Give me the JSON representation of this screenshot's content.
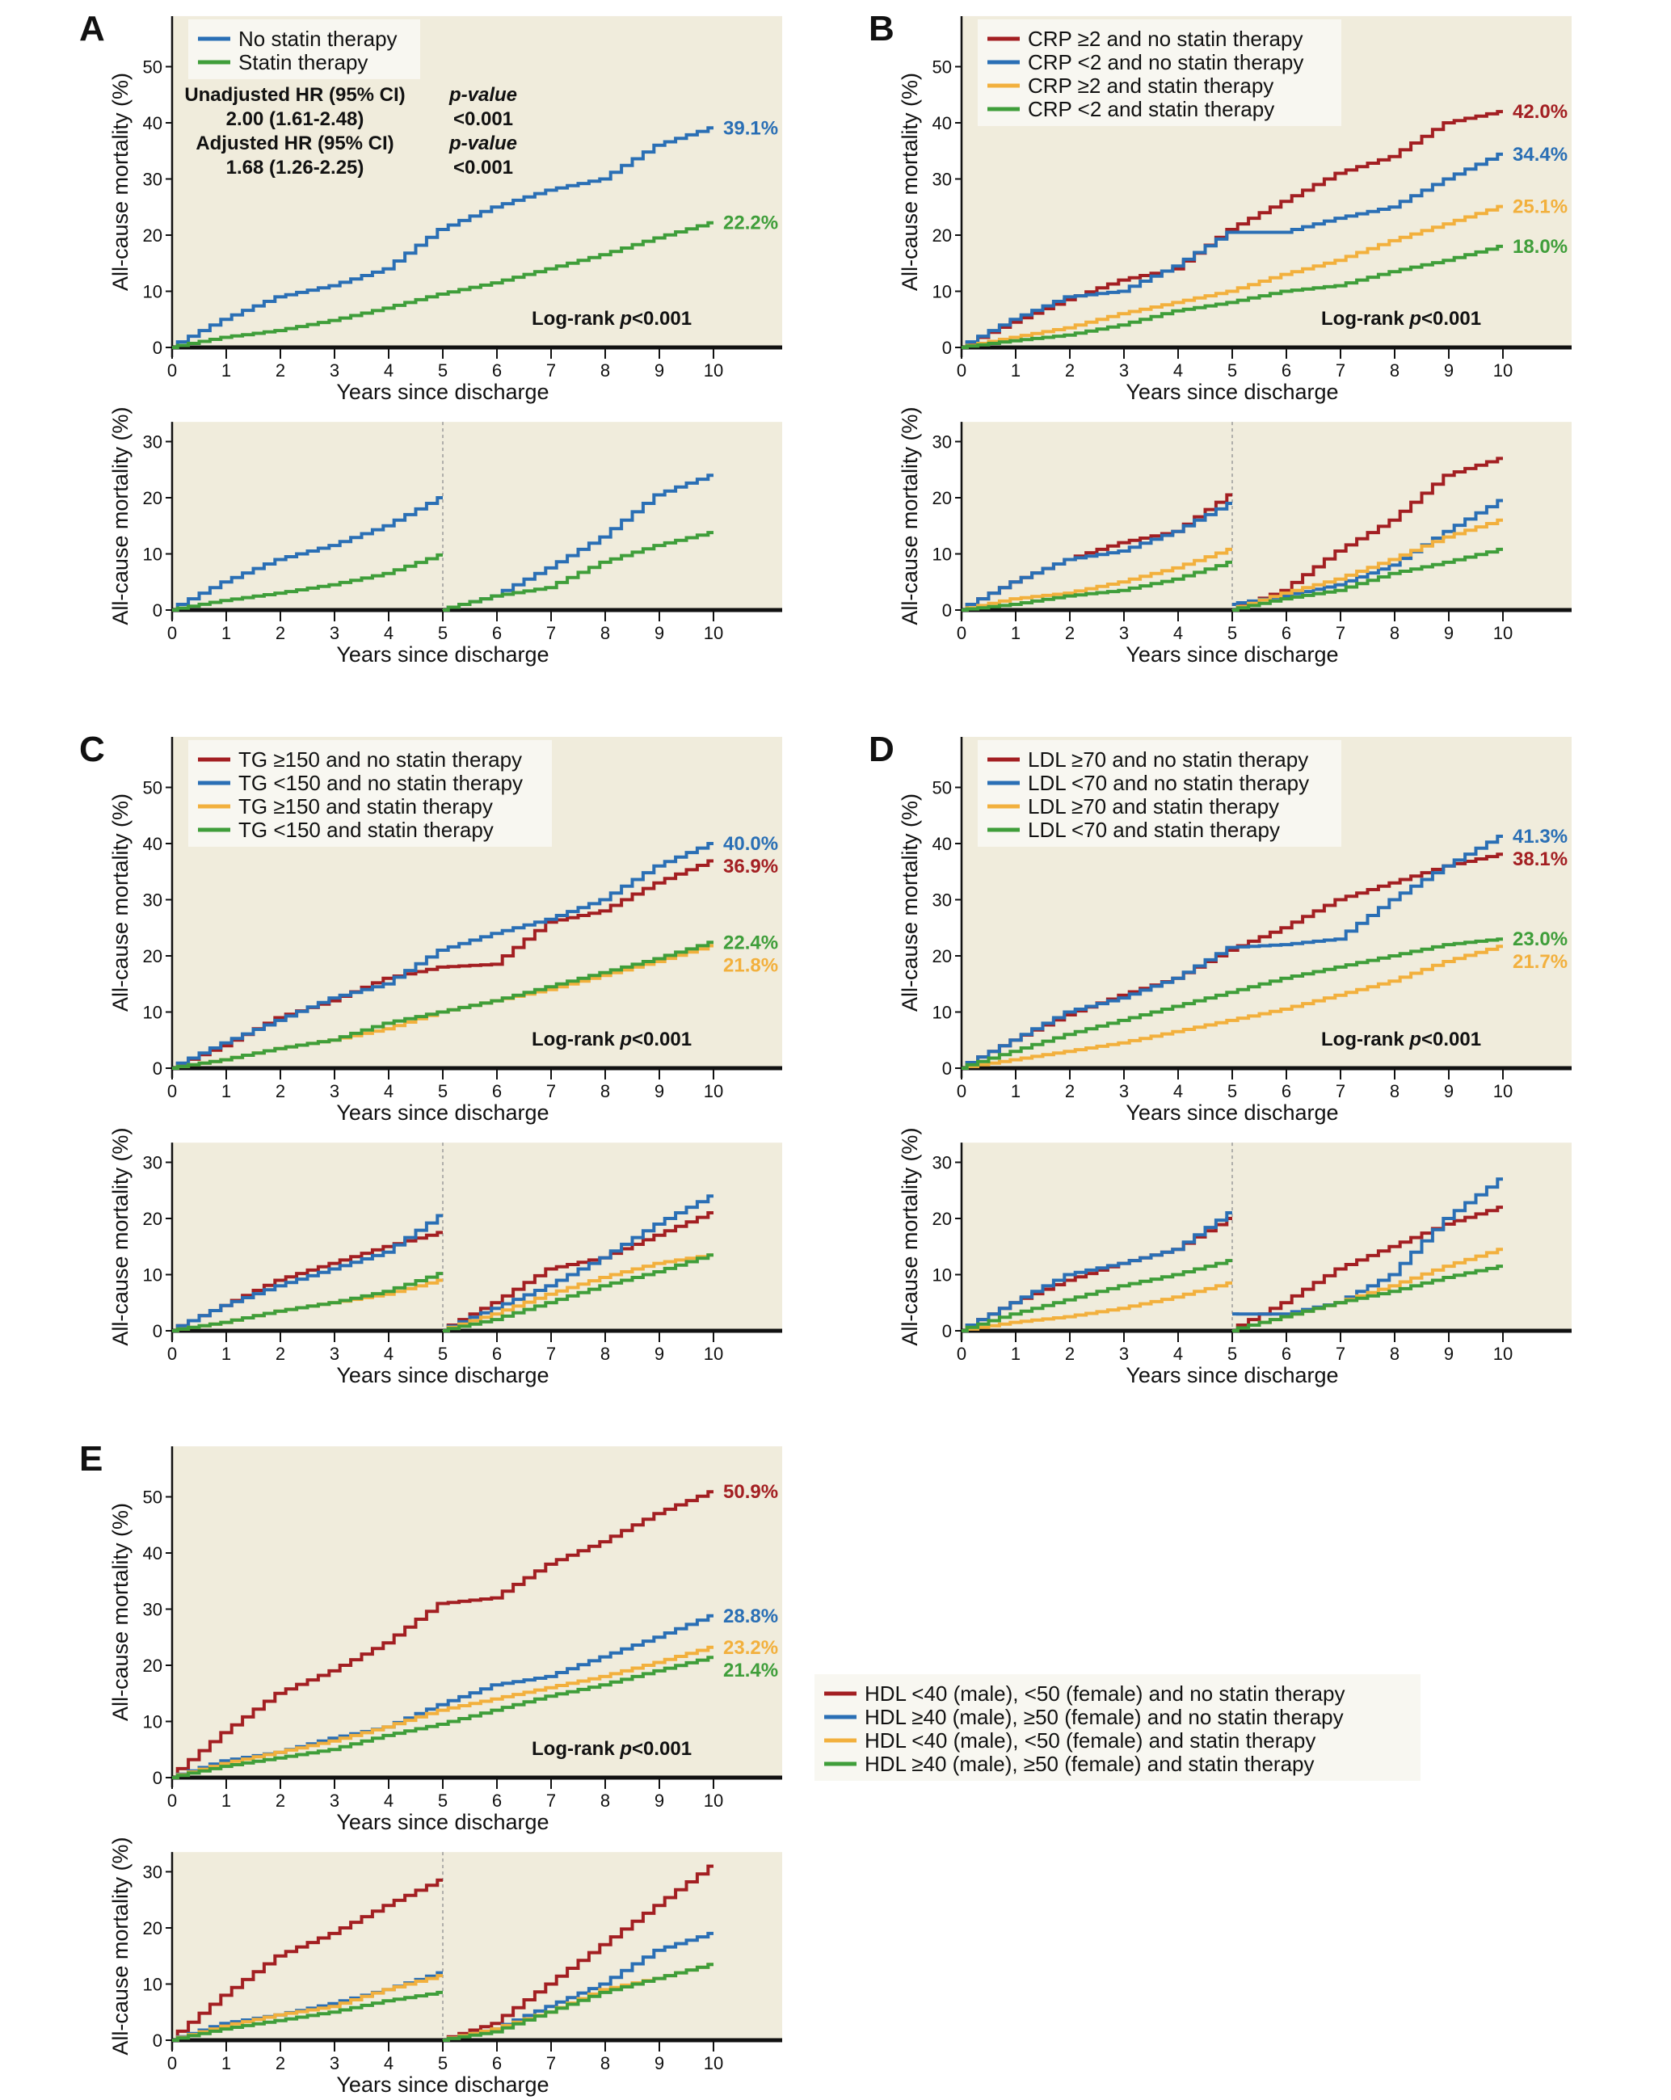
{
  "chart_data": {
    "type": "line",
    "subtype": "kaplan-meier step curves",
    "colors": {
      "red": "#a31f22",
      "blue": "#2a6fb5",
      "orange": "#f2b03d",
      "green": "#3f9e3a",
      "plot_bg": "#f0ecdc",
      "legend_bg": "#f8f7f1"
    },
    "xlabel": "Years since discharge",
    "ylabel": "All-cause mortality (%)",
    "x_ticks": [
      0,
      1,
      2,
      3,
      4,
      5,
      6,
      7,
      8,
      9,
      10
    ],
    "top_y_ticks": [
      0,
      10,
      20,
      30,
      40,
      50
    ],
    "bottom_y_ticks": [
      0,
      10,
      20,
      30
    ],
    "top_ylim": [
      0,
      59
    ],
    "bottom_ylim": [
      0,
      33.5
    ],
    "xlim": [
      0,
      11.25
    ],
    "panels": [
      {
        "letter": "A",
        "legend": [
          {
            "label": "No statin therapy",
            "color": "blue"
          },
          {
            "label": "Statin therapy",
            "color": "green"
          }
        ],
        "hr_table": [
          [
            "Unadjusted HR (95% CI)",
            "p-value"
          ],
          [
            "2.00 (1.61-2.48)",
            "<0.001"
          ],
          [
            "Adjusted HR (95% CI)",
            "p-value"
          ],
          [
            "1.68 (1.26-2.25)",
            "<0.001"
          ]
        ],
        "log_rank": {
          "prefix": "Log-rank ",
          "p": "p",
          "value": "<0.001"
        },
        "top": [
          {
            "color": "blue",
            "y": [
              0,
              5,
              9,
              11,
              14,
              21,
              25,
              28,
              30,
              36,
              39.1
            ],
            "end_label": "39.1%"
          },
          {
            "color": "green",
            "y": [
              0,
              1.8,
              3,
              4.8,
              7,
              9.5,
              11.5,
              14,
              16.5,
              19.5,
              22.2
            ],
            "end_label": "22.2%"
          }
        ],
        "bottom": [
          {
            "color": "blue",
            "y1": [
              0,
              5,
              9,
              11.5,
              15,
              20
            ],
            "y2": [
              0,
              2.5,
              7.5,
              13,
              20.5,
              24
            ]
          },
          {
            "color": "green",
            "y1": [
              0,
              1.7,
              3,
              4.5,
              6.5,
              9.8
            ],
            "y2": [
              0,
              2.5,
              4,
              8.5,
              11.5,
              13.8
            ]
          }
        ]
      },
      {
        "letter": "B",
        "legend": [
          {
            "label": "CRP ≥2 and no statin therapy",
            "color": "red"
          },
          {
            "label": "CRP <2 and no statin therapy",
            "color": "blue"
          },
          {
            "label": "CRP ≥2 and statin therapy",
            "color": "orange"
          },
          {
            "label": "CRP <2 and statin therapy",
            "color": "green"
          }
        ],
        "log_rank": {
          "prefix": "Log-rank ",
          "p": "p",
          "value": "<0.001"
        },
        "top": [
          {
            "color": "red",
            "y": [
              0,
              4.5,
              8.5,
              12,
              14,
              21,
              26,
              31,
              34,
              40,
              42.0
            ],
            "end_label": "42.0%"
          },
          {
            "color": "blue",
            "y": [
              0,
              5,
              9,
              10,
              14.5,
              20.5,
              20.5,
              23,
              25,
              30,
              34.4
            ],
            "end_label": "34.4%"
          },
          {
            "color": "orange",
            "y": [
              0,
              1.8,
              3.5,
              6,
              8,
              10,
              13,
              15.5,
              19,
              22,
              25.1
            ],
            "end_label": "25.1%"
          },
          {
            "color": "green",
            "y": [
              0,
              1.2,
              2.2,
              4,
              6.5,
              8,
              10,
              11,
              13.5,
              15.5,
              18.0
            ],
            "end_label": "18.0%"
          }
        ],
        "bottom": [
          {
            "color": "red",
            "y1": [
              0,
              5,
              9,
              12,
              14,
              20.5
            ],
            "y2": [
              0,
              3.5,
              10.5,
              16,
              24,
              27
            ]
          },
          {
            "color": "blue",
            "y1": [
              0,
              5,
              9,
              10.5,
              14,
              19
            ],
            "y2": [
              1,
              2.5,
              4.5,
              8,
              14,
              19.5
            ]
          },
          {
            "color": "orange",
            "y1": [
              0,
              2,
              3,
              5,
              7.5,
              10.8
            ],
            "y2": [
              0,
              3,
              5.5,
              9,
              13,
              16
            ]
          },
          {
            "color": "green",
            "y1": [
              0,
              1,
              2.5,
              3.5,
              5.5,
              8.5
            ],
            "y2": [
              0,
              2,
              3.5,
              6.5,
              8.5,
              10.8
            ]
          }
        ]
      },
      {
        "letter": "C",
        "legend": [
          {
            "label": "TG ≥150 and no statin therapy",
            "color": "red"
          },
          {
            "label": "TG <150 and no statin therapy",
            "color": "blue"
          },
          {
            "label": "TG ≥150 and statin therapy",
            "color": "orange"
          },
          {
            "label": "TG <150 and statin therapy",
            "color": "green"
          }
        ],
        "log_rank": {
          "prefix": "Log-rank ",
          "p": "p",
          "value": "<0.001"
        },
        "top": [
          {
            "color": "red",
            "y": [
              0,
              4,
              9,
              12,
              16,
              18,
              18.5,
              26,
              28,
              33,
              36.9
            ],
            "end_label": "36.9%"
          },
          {
            "color": "blue",
            "y": [
              0,
              4.5,
              8.5,
              12.5,
              15,
              21,
              24,
              26.5,
              30,
              36,
              40.0
            ],
            "end_label": "40.0%"
          },
          {
            "color": "orange",
            "y": [
              0,
              1.5,
              3.5,
              5,
              7,
              10,
              12,
              14,
              16.5,
              19,
              21.8
            ],
            "end_label": "21.8%"
          },
          {
            "color": "green",
            "y": [
              0,
              1.5,
              3.5,
              5,
              8,
              10,
              12,
              14.5,
              17,
              19.5,
              22.4
            ],
            "end_label": "22.4%"
          }
        ],
        "bottom": [
          {
            "color": "red",
            "y1": [
              0,
              4.5,
              9,
              12,
              15,
              17.5
            ],
            "y2": [
              0,
              5,
              11,
              13,
              17,
              21
            ]
          },
          {
            "color": "blue",
            "y1": [
              0,
              4.5,
              8,
              11,
              14,
              20.5
            ],
            "y2": [
              0,
              4,
              8,
              13,
              19,
              24
            ]
          },
          {
            "color": "orange",
            "y1": [
              0,
              1.5,
              3.5,
              5,
              6.5,
              9
            ],
            "y2": [
              0,
              3,
              6.5,
              9.5,
              12,
              13.5
            ]
          },
          {
            "color": "green",
            "y1": [
              0,
              1.5,
              3.5,
              5,
              7,
              10.2
            ],
            "y2": [
              0,
              2,
              5,
              8,
              10.5,
              13.5
            ]
          }
        ]
      },
      {
        "letter": "D",
        "legend": [
          {
            "label": "LDL ≥70 and no statin therapy",
            "color": "red"
          },
          {
            "label": "LDL <70 and no statin therapy",
            "color": "blue"
          },
          {
            "label": "LDL ≥70 and statin therapy",
            "color": "orange"
          },
          {
            "label": "LDL <70 and statin therapy",
            "color": "green"
          }
        ],
        "log_rank": {
          "prefix": "Log-rank ",
          "p": "p",
          "value": "<0.001"
        },
        "top": [
          {
            "color": "red",
            "y": [
              0,
              5,
              9.5,
              13,
              16,
              21,
              25,
              30,
              33,
              36,
              38.1
            ],
            "end_label": "38.1%"
          },
          {
            "color": "blue",
            "y": [
              0,
              5,
              10,
              12.5,
              16,
              21.5,
              22,
              23,
              30,
              36,
              41.3
            ],
            "end_label": "41.3%"
          },
          {
            "color": "orange",
            "y": [
              0,
              1.5,
              3,
              4.5,
              6.5,
              8.5,
              10.5,
              13,
              15.5,
              19,
              21.7
            ],
            "end_label": "21.7%"
          },
          {
            "color": "green",
            "y": [
              0,
              3,
              6,
              8.5,
              11,
              13.5,
              16,
              18,
              20,
              22,
              23.0
            ],
            "end_label": "23.0%"
          }
        ],
        "bottom": [
          {
            "color": "red",
            "y1": [
              0,
              5,
              9,
              12,
              14.5,
              20
            ],
            "y2": [
              0,
              5,
              11,
              15,
              19,
              22
            ]
          },
          {
            "color": "blue",
            "y1": [
              0,
              5,
              10,
              12,
              14.5,
              21
            ],
            "y2": [
              3,
              3,
              5,
              10,
              20,
              27
            ]
          },
          {
            "color": "orange",
            "y1": [
              0,
              1.5,
              2.5,
              4,
              6,
              8.5
            ],
            "y2": [
              0,
              2.5,
              5,
              8,
              11.5,
              14.5
            ]
          },
          {
            "color": "green",
            "y1": [
              0,
              3,
              5.5,
              8,
              10,
              12.5
            ],
            "y2": [
              0,
              2.5,
              5,
              7,
              9.5,
              11.5
            ]
          }
        ]
      },
      {
        "letter": "E",
        "legend": [
          {
            "label": "HDL <40 (male), <50 (female) and no statin therapy",
            "color": "red"
          },
          {
            "label": "HDL ≥40 (male), ≥50 (female) and no statin therapy",
            "color": "blue"
          },
          {
            "label": "HDL <40 (male), <50 (female) and statin therapy",
            "color": "orange"
          },
          {
            "label": "HDL ≥40 (male), ≥50 (female) and statin therapy",
            "color": "green"
          }
        ],
        "log_rank": {
          "prefix": "Log-rank ",
          "p": "p",
          "value": "<0.001"
        },
        "top": [
          {
            "color": "red",
            "y": [
              0,
              8,
              15,
              19,
              24,
              31,
              32,
              38,
              42,
              47,
              50.9
            ],
            "end_label": "50.9%"
          },
          {
            "color": "blue",
            "y": [
              0,
              3,
              4.5,
              7,
              9,
              13,
              16.5,
              18,
              21.5,
              25,
              28.8
            ],
            "end_label": "28.8%"
          },
          {
            "color": "orange",
            "y": [
              0,
              2.5,
              4.5,
              6.5,
              9,
              12,
              14,
              16,
              18,
              20.5,
              23.2
            ],
            "end_label": "23.2%"
          },
          {
            "color": "green",
            "y": [
              0,
              2,
              3.5,
              5,
              7.5,
              9.5,
              12,
              14.5,
              16.5,
              19,
              21.4
            ],
            "end_label": "21.4%"
          }
        ],
        "bottom": [
          {
            "color": "red",
            "y1": [
              0,
              8,
              15,
              19,
              24,
              28.5
            ],
            "y2": [
              0,
              3,
              10,
              17,
              24,
              31
            ]
          },
          {
            "color": "blue",
            "y1": [
              0,
              3,
              4.5,
              6.5,
              9,
              12
            ],
            "y2": [
              0,
              2,
              6,
              10,
              16,
              19
            ]
          },
          {
            "color": "orange",
            "y1": [
              0,
              2.5,
              4.5,
              6,
              9,
              11.5
            ],
            "y2": [
              0,
              2,
              5,
              9,
              11,
              13.5
            ]
          },
          {
            "color": "green",
            "y1": [
              0,
              2,
              3.5,
              5,
              7,
              8.5
            ],
            "y2": [
              0,
              1.5,
              5,
              8.5,
              11,
              13.5
            ]
          }
        ]
      }
    ]
  }
}
